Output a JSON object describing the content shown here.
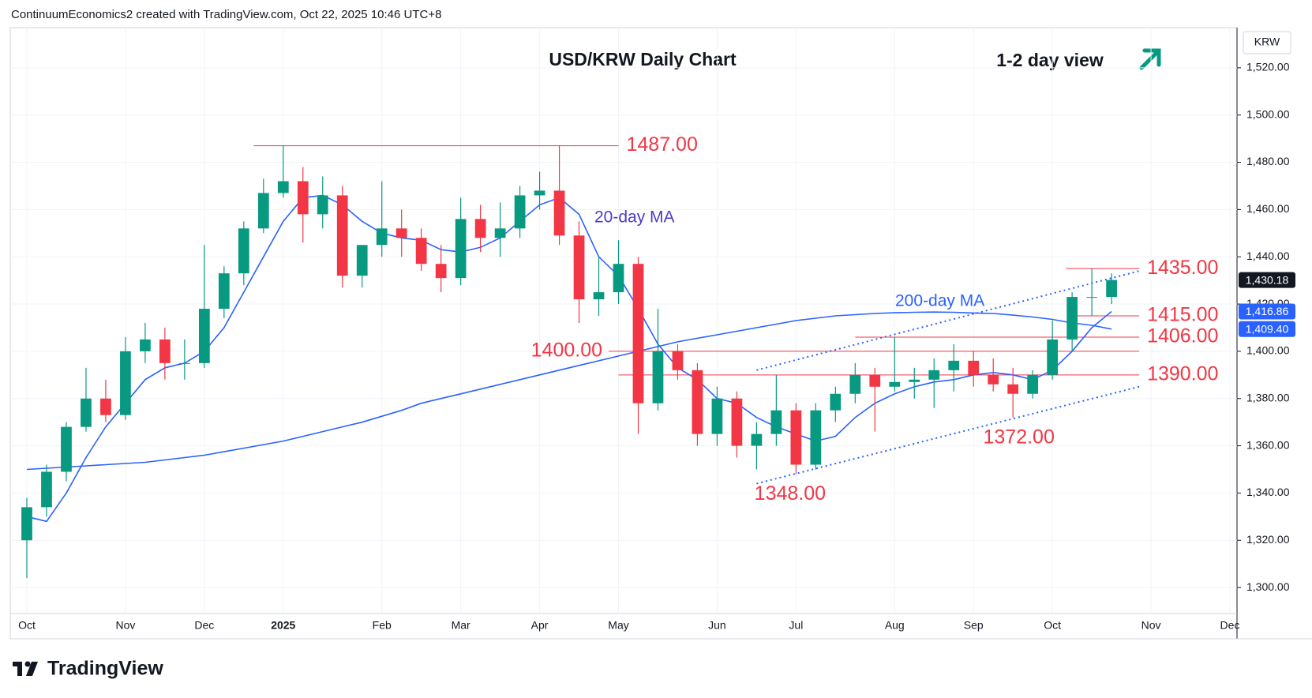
{
  "chart_data": {
    "type": "candlestick",
    "header": "ContinuumEconomics2 created with TradingView.com, Oct 22, 2025 10:46 UTC+8",
    "title": "USD/KRW Daily Chart",
    "subtitle": "1-2 day view",
    "y_axis_label": "KRW",
    "footer": "TradingView",
    "up_color": "#089981",
    "down_color": "#f23645",
    "level_color": "#f23645",
    "grid": true,
    "categories": [
      "Oct",
      null,
      null,
      null,
      null,
      "Nov",
      null,
      null,
      null,
      "Dec",
      null,
      null,
      null,
      "2025",
      null,
      null,
      null,
      null,
      "Feb",
      null,
      null,
      null,
      "Mar",
      null,
      null,
      null,
      "Apr",
      null,
      null,
      null,
      "May",
      null,
      null,
      null,
      null,
      "Jun",
      null,
      null,
      null,
      "Jul",
      null,
      null,
      null,
      null,
      "Aug",
      null,
      null,
      null,
      "Sep",
      null,
      null,
      null,
      "Oct",
      null,
      null,
      null,
      null,
      "Nov",
      null,
      null,
      null,
      "Dec"
    ],
    "open": [
      1320,
      1334,
      1349,
      1368,
      1380,
      1373,
      1400,
      1405,
      1395,
      1395,
      1418,
      1433,
      1452,
      1467,
      1472,
      1458,
      1466,
      1432,
      1445,
      1452,
      1448,
      1437,
      1431,
      1456,
      1448,
      1452,
      1466,
      1468,
      1449,
      1422,
      1425,
      1437,
      1378,
      1400,
      1392,
      1365,
      1380,
      1360,
      1365,
      1375,
      1352,
      1375,
      1382,
      1390,
      1385,
      1387,
      1388,
      1392,
      1396,
      1390,
      1386,
      1382,
      1390,
      1405,
      1423,
      1423,
      null,
      null,
      null,
      null,
      null,
      null
    ],
    "high": [
      1338,
      1352,
      1370,
      1393,
      1388,
      1406,
      1412,
      1410,
      1405,
      1445,
      1436,
      1455,
      1473,
      1487,
      1478,
      1474,
      1470,
      1445,
      1472,
      1460,
      1452,
      1445,
      1465,
      1462,
      1463,
      1470,
      1476,
      1487,
      1455,
      1440,
      1447,
      1440,
      1418,
      1403,
      1395,
      1385,
      1383,
      1370,
      1390,
      1378,
      1378,
      1385,
      1395,
      1393,
      1406,
      1393,
      1397,
      1403,
      1400,
      1397,
      1393,
      1392,
      1413,
      1425,
      1435,
      1433,
      null,
      null,
      null,
      null,
      null,
      null
    ],
    "low": [
      1304,
      1330,
      1345,
      1366,
      1370,
      1371,
      1395,
      1388,
      1388,
      1393,
      1414,
      1428,
      1450,
      1465,
      1446,
      1452,
      1427,
      1427,
      1440,
      1440,
      1434,
      1425,
      1428,
      1442,
      1440,
      1448,
      1460,
      1445,
      1412,
      1415,
      1420,
      1365,
      1375,
      1388,
      1360,
      1360,
      1355,
      1350,
      1360,
      1348,
      1350,
      1370,
      1378,
      1366,
      1383,
      1380,
      1376,
      1383,
      1385,
      1383,
      1372,
      1380,
      1388,
      1400,
      1415,
      1420,
      null,
      null,
      null,
      null,
      null,
      null
    ],
    "close": [
      1334,
      1349,
      1368,
      1380,
      1373,
      1400,
      1405,
      1395,
      1395,
      1418,
      1433,
      1452,
      1467,
      1472,
      1458,
      1466,
      1432,
      1445,
      1452,
      1448,
      1437,
      1431,
      1456,
      1448,
      1452,
      1466,
      1468,
      1449,
      1422,
      1425,
      1437,
      1378,
      1400,
      1392,
      1365,
      1380,
      1360,
      1365,
      1375,
      1352,
      1375,
      1382,
      1390,
      1385,
      1387,
      1388,
      1392,
      1396,
      1390,
      1386,
      1382,
      1390,
      1405,
      1423,
      1423,
      1430.18,
      null,
      null,
      null,
      null,
      null,
      null
    ],
    "series": [
      {
        "name": "20-day MA",
        "color": "#2962ff",
        "values": [
          1330,
          1328,
          1340,
          1355,
          1368,
          1378,
          1388,
          1393,
          1395,
          1400,
          1410,
          1425,
          1440,
          1455,
          1465,
          1466,
          1462,
          1455,
          1450,
          1448,
          1447,
          1443,
          1442,
          1444,
          1448,
          1455,
          1462,
          1465,
          1458,
          1440,
          1432,
          1418,
          1403,
          1393,
          1388,
          1380,
          1378,
          1372,
          1368,
          1365,
          1362,
          1364,
          1372,
          1378,
          1382,
          1385,
          1387,
          1388,
          1390,
          1391,
          1390,
          1388,
          1392,
          1400,
          1410,
          1416.86,
          null,
          null,
          null,
          null,
          null,
          null
        ]
      },
      {
        "name": "200-day MA",
        "color": "#2962ff",
        "values": [
          1350,
          1350.5,
          1351,
          1351.5,
          1352,
          1352.5,
          1353,
          1354,
          1355,
          1356,
          1357.5,
          1359,
          1360.5,
          1362,
          1364,
          1366,
          1368,
          1370,
          1372.5,
          1375,
          1378,
          1380,
          1382,
          1384,
          1386,
          1388,
          1390,
          1392,
          1394,
          1396,
          1398,
          1400,
          1402,
          1404,
          1405.5,
          1407,
          1408.5,
          1410,
          1411.5,
          1413,
          1414,
          1415,
          1415.5,
          1416,
          1416.3,
          1416.5,
          1416.6,
          1416.5,
          1416.2,
          1416,
          1415.3,
          1414.5,
          1413.5,
          1412,
          1411,
          1409.4,
          null,
          null,
          null,
          null,
          null,
          null
        ]
      }
    ],
    "price_badges": [
      {
        "value": 1430.18,
        "label": "1,430.18",
        "color": "#131722"
      },
      {
        "value": 1416.86,
        "label": "1,416.86",
        "color": "#2962ff"
      },
      {
        "value": 1409.4,
        "label": "1,409.40",
        "color": "#2962ff"
      }
    ],
    "levels": [
      {
        "value": 1487,
        "label": "1487.00",
        "from": 11.5,
        "to": 30
      },
      {
        "value": 1435,
        "label": "1435.00",
        "from": 52.7,
        "to": 56.4
      },
      {
        "value": 1415,
        "label": "1415.00",
        "from": 53,
        "to": 56.4
      },
      {
        "value": 1406,
        "label": "1406.00",
        "from": 42,
        "to": 56.4
      },
      {
        "value": 1400,
        "label": "1400.00",
        "from": 29.5,
        "to": 56.4,
        "label_side": "left"
      },
      {
        "value": 1390,
        "label": "1390.00",
        "from": 30,
        "to": 56.4
      }
    ],
    "point_labels": [
      {
        "value": 1372,
        "label": "1372.00",
        "at": 50.3
      },
      {
        "value": 1348,
        "label": "1348.00",
        "at": 38.7
      }
    ],
    "trendlines": [
      {
        "points": [
          [
            37,
            1392
          ],
          [
            56.4,
            1434
          ]
        ]
      },
      {
        "points": [
          [
            37,
            1344
          ],
          [
            56.4,
            1385
          ]
        ]
      }
    ],
    "ylim": [
      1289,
      1537
    ],
    "yticks": [
      {
        "value": 1300,
        "label": "1,300.00"
      },
      {
        "value": 1320,
        "label": "1,320.00"
      },
      {
        "value": 1340,
        "label": "1,340.00"
      },
      {
        "value": 1360,
        "label": "1,360.00"
      },
      {
        "value": 1380,
        "label": "1,380.00"
      },
      {
        "value": 1400,
        "label": "1,400.00"
      },
      {
        "value": 1420,
        "label": "1,420.00"
      },
      {
        "value": 1440,
        "label": "1,440.00"
      },
      {
        "value": 1460,
        "label": "1,460.00"
      },
      {
        "value": 1480,
        "label": "1,480.00"
      },
      {
        "value": 1500,
        "label": "1,500.00"
      },
      {
        "value": 1520,
        "label": "1,520.00"
      }
    ]
  }
}
